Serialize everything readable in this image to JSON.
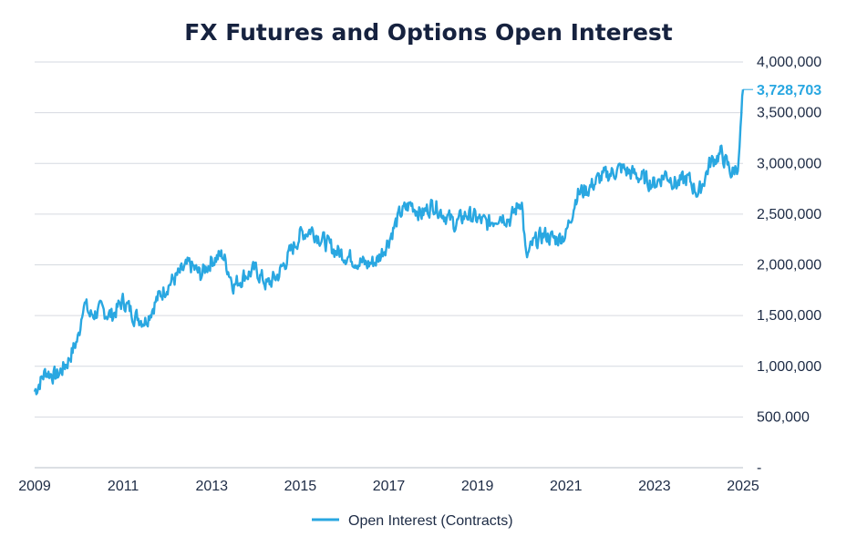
{
  "chart_data": {
    "type": "line",
    "title": "FX Futures and Options Open Interest",
    "xlabel": "",
    "ylabel": "",
    "xlim": [
      2009,
      2025
    ],
    "ylim": [
      0,
      4000000
    ],
    "x_ticks": [
      "2009",
      "2011",
      "2013",
      "2015",
      "2017",
      "2019",
      "2021",
      "2023",
      "2025"
    ],
    "y_ticks": [
      "-",
      "500,000",
      "1,000,000",
      "1,500,000",
      "2,000,000",
      "2,500,000",
      "3,000,000",
      "3,500,000",
      "4,000,000"
    ],
    "grid": "horizontal",
    "legend_position": "bottom",
    "line_color": "#29a7e1",
    "last_value_label": "3,728,703",
    "last_value": 3728703,
    "series": [
      {
        "name": "Open Interest (Contracts)",
        "x": [
          2009.0,
          2009.25,
          2009.5,
          2009.75,
          2010.0,
          2010.1,
          2010.25,
          2010.5,
          2010.75,
          2011.0,
          2011.25,
          2011.5,
          2011.75,
          2012.0,
          2012.25,
          2012.5,
          2012.75,
          2013.0,
          2013.25,
          2013.5,
          2013.75,
          2014.0,
          2014.25,
          2014.5,
          2014.75,
          2015.0,
          2015.25,
          2015.5,
          2015.75,
          2016.0,
          2016.25,
          2016.5,
          2016.75,
          2017.0,
          2017.25,
          2017.5,
          2017.75,
          2018.0,
          2018.25,
          2018.5,
          2018.75,
          2019.0,
          2019.25,
          2019.5,
          2019.75,
          2020.0,
          2020.1,
          2020.25,
          2020.5,
          2020.75,
          2021.0,
          2021.25,
          2021.5,
          2021.75,
          2022.0,
          2022.25,
          2022.5,
          2022.75,
          2023.0,
          2023.25,
          2023.5,
          2023.75,
          2024.0,
          2024.25,
          2024.5,
          2024.75,
          2024.9,
          2025.0
        ],
        "values": [
          750000,
          950000,
          900000,
          1050000,
          1300000,
          1650000,
          1500000,
          1550000,
          1500000,
          1650000,
          1500000,
          1450000,
          1650000,
          1800000,
          1900000,
          2000000,
          1900000,
          2050000,
          2100000,
          1800000,
          1900000,
          1950000,
          1800000,
          1900000,
          2100000,
          2300000,
          2350000,
          2250000,
          2150000,
          2100000,
          2050000,
          2000000,
          2050000,
          2250000,
          2500000,
          2600000,
          2500000,
          2600000,
          2500000,
          2400000,
          2500000,
          2450000,
          2400000,
          2500000,
          2450000,
          2650000,
          2050000,
          2200000,
          2300000,
          2250000,
          2300000,
          2700000,
          2750000,
          2850000,
          2900000,
          2950000,
          2900000,
          2850000,
          2800000,
          2900000,
          2800000,
          2850000,
          2700000,
          3000000,
          3100000,
          2900000,
          3000000,
          3728703
        ],
        "noise": 120000
      }
    ]
  }
}
